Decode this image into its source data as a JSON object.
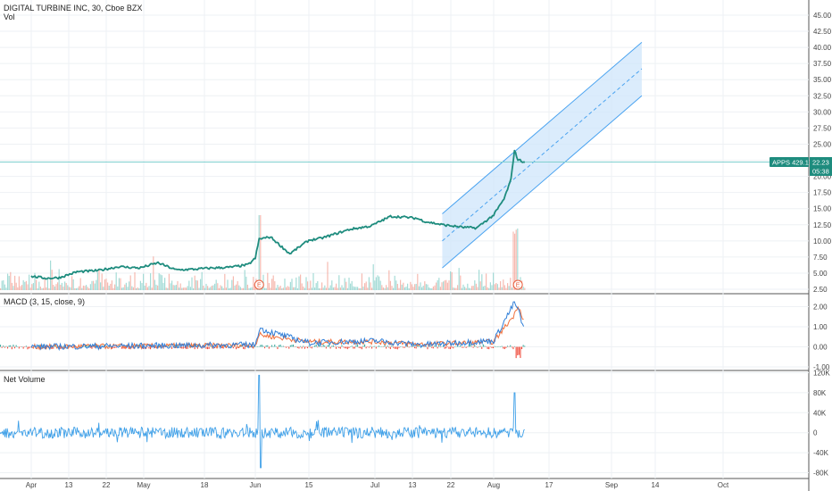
{
  "header": {
    "symbol_line": "DIGITAL TURBINE INC, 30, Cboe BZX",
    "vol_label": "Vol"
  },
  "macd_label": "MACD (3, 15, close, 9)",
  "netvol_label": "Net Volume",
  "price_badge": {
    "label": "APPS 429.17%",
    "price": "22.23",
    "timer": "05:38"
  },
  "earnings_marker": "E",
  "colors": {
    "price_line": "#1e8c7e",
    "channel_fill": "#cfe5fb",
    "channel_line": "#4aa3f0",
    "vol_up": "#8fd3cd",
    "vol_down": "#f4a99d",
    "macd_line": "#2f7ed8",
    "signal_line": "#f0703c",
    "hist_up": "#3aa89c",
    "hist_down": "#ef4a3a",
    "netvol_line": "#3fa0e8",
    "hline": "#7fcfcf",
    "badge_bg": "#1e8c7e"
  },
  "chart_data": [
    {
      "type": "line",
      "title": "DIGITAL TURBINE INC, 30, Cboe BZX",
      "ylim": [
        2.5,
        47.5
      ],
      "y_ticks": [
        "45.00",
        "42.50",
        "40.00",
        "37.50",
        "35.00",
        "32.50",
        "30.00",
        "27.50",
        "25.00",
        "22.50",
        "20.00",
        "17.50",
        "15.00",
        "12.50",
        "10.00",
        "7.50",
        "5.00",
        "2.50"
      ],
      "x_ticks": [
        "Apr",
        "13",
        "22",
        "May",
        "18",
        "Jun",
        "15",
        "Jul",
        "13",
        "22",
        "Aug",
        "17",
        "Sep",
        "14",
        "Oct"
      ],
      "series": [
        {
          "name": "APPS",
          "x": [
            "Apr 01",
            "Apr 06",
            "Apr 10",
            "Apr 15",
            "Apr 20",
            "Apr 25",
            "Apr 30",
            "May 05",
            "May 10",
            "May 15",
            "May 20",
            "May 25",
            "May 30",
            "Jun 01",
            "Jun 02",
            "Jun 05",
            "Jun 10",
            "Jun 15",
            "Jun 18",
            "Jun 20",
            "Jun 25",
            "Jun 30",
            "Jul 03",
            "Jul 06",
            "Jul 10",
            "Jul 14",
            "Jul 16",
            "Jul 20",
            "Jul 25",
            "Jul 28",
            "Aug 01",
            "Aug 04",
            "Aug 06",
            "Aug 07",
            "Aug 08",
            "Aug 10"
          ],
          "values": [
            4.5,
            4.2,
            4.3,
            5.2,
            5.4,
            6.0,
            5.8,
            6.6,
            5.5,
            5.6,
            5.8,
            5.9,
            6.3,
            7.3,
            10.3,
            10.6,
            8.0,
            10.1,
            10.4,
            10.8,
            11.8,
            12.3,
            13.1,
            13.8,
            13.7,
            13.5,
            13.0,
            12.5,
            12.1,
            12.0,
            14.0,
            16.5,
            19.5,
            24.1,
            22.6,
            22.2
          ]
        }
      ],
      "channel": {
        "x": [
          "Jul 20",
          "Sep 10"
        ],
        "upper": [
          14.2,
          40.8
        ],
        "middle": [
          10.0,
          36.7
        ],
        "lower": [
          5.8,
          32.5
        ]
      },
      "last_price": 22.23,
      "change_label": "429.17%",
      "earnings": [
        "Jun 02",
        "Aug 08"
      ]
    },
    {
      "type": "line",
      "title": "MACD (3, 15, close, 9)",
      "ylim": [
        -1.0,
        2.0
      ],
      "y_ticks": [
        "2.00",
        "1.00",
        "0.00",
        "-1.00"
      ],
      "series": [
        {
          "name": "MACD",
          "x": [
            "Apr 01",
            "May 01",
            "Jun 01",
            "Jun 02",
            "Jun 15",
            "Jul 01",
            "Jul 15",
            "Aug 01",
            "Aug 07",
            "Aug 08",
            "Aug 10"
          ],
          "values": [
            0.0,
            0.05,
            0.1,
            0.9,
            0.2,
            0.3,
            0.1,
            0.3,
            2.2,
            1.9,
            0.7
          ]
        },
        {
          "name": "Signal",
          "x": [
            "Apr 01",
            "May 01",
            "Jun 01",
            "Jun 02",
            "Jun 15",
            "Jul 01",
            "Jul 15",
            "Aug 01",
            "Aug 07",
            "Aug 08",
            "Aug 10"
          ],
          "values": [
            0.0,
            0.04,
            0.08,
            0.6,
            0.25,
            0.25,
            0.12,
            0.25,
            1.6,
            2.1,
            1.2
          ]
        }
      ]
    },
    {
      "type": "line",
      "title": "Net Volume",
      "ylim": [
        -90000,
        120000
      ],
      "y_ticks": [
        "120K",
        "80K",
        "40K",
        "0",
        "-40K",
        "-80K"
      ],
      "series": [
        {
          "name": "Net Volume",
          "x": [
            "Apr 01",
            "Jun 02",
            "Aug 07"
          ],
          "values": [
            0,
            115000,
            80000
          ]
        }
      ]
    }
  ]
}
